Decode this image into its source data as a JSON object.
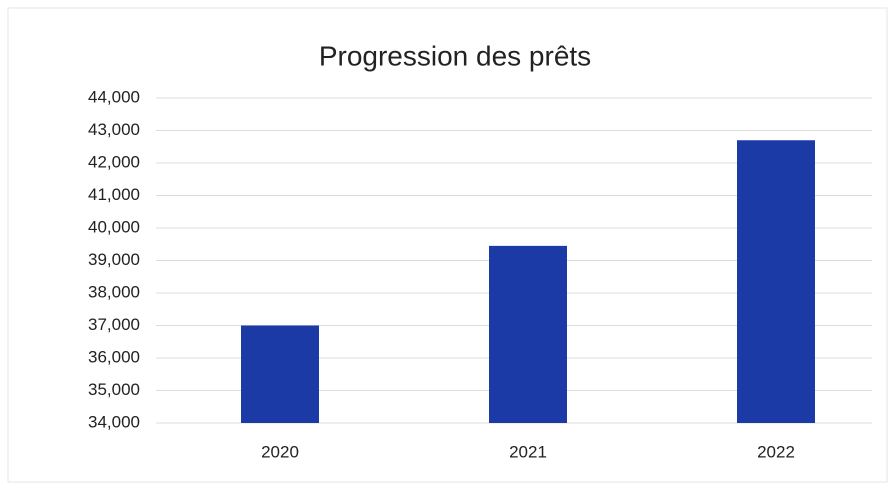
{
  "chart_data": {
    "type": "bar",
    "title": "Progression des prêts",
    "categories": [
      "2020",
      "2021",
      "2022"
    ],
    "values": [
      37000,
      39450,
      42700
    ],
    "color": "#1c3aa6",
    "ylim": [
      34000,
      44000
    ],
    "yticks": [
      {
        "value": 34000,
        "label": "34,000"
      },
      {
        "value": 35000,
        "label": "35,000"
      },
      {
        "value": 36000,
        "label": "36,000"
      },
      {
        "value": 37000,
        "label": "37,000"
      },
      {
        "value": 38000,
        "label": "38,000"
      },
      {
        "value": 39000,
        "label": "39,000"
      },
      {
        "value": 40000,
        "label": "40,000"
      },
      {
        "value": 41000,
        "label": "41,000"
      },
      {
        "value": 42000,
        "label": "42,000"
      },
      {
        "value": 43000,
        "label": "43,000"
      },
      {
        "value": 44000,
        "label": "44,000"
      }
    ],
    "grid": true
  }
}
